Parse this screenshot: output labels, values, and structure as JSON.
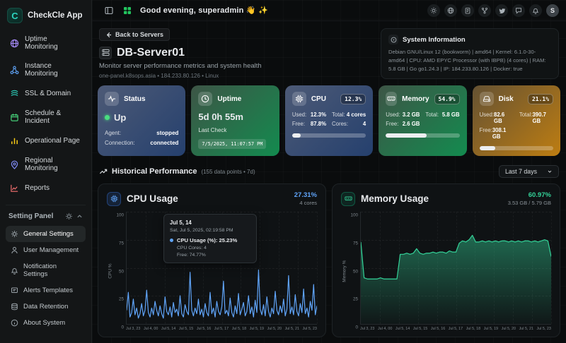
{
  "app": {
    "name": "CheckCle App",
    "logo_letter": "C"
  },
  "sidebar": {
    "nav": [
      {
        "label": "Uptime Monitoring",
        "icon": "globe-icon",
        "color": "#a78bfa"
      },
      {
        "label": "Instance Monitoring",
        "icon": "nodes-icon",
        "color": "#60a5fa"
      },
      {
        "label": "SSL & Domain",
        "icon": "layers-icon",
        "color": "#2dd4bf"
      },
      {
        "label": "Schedule & Incident",
        "icon": "calendar-icon",
        "color": "#4ade80"
      },
      {
        "label": "Operational Page",
        "icon": "bar-chart-icon",
        "color": "#facc15"
      },
      {
        "label": "Regional Monitoring",
        "icon": "map-pin-icon",
        "color": "#818cf8"
      },
      {
        "label": "Reports",
        "icon": "line-chart-icon",
        "color": "#f87171"
      }
    ],
    "settings_header": "Setting Panel",
    "settings": [
      {
        "label": "General Settings",
        "active": true
      },
      {
        "label": "User Management"
      },
      {
        "label": "Notification Settings"
      },
      {
        "label": "Alerts Templates"
      },
      {
        "label": "Data Retention"
      },
      {
        "label": "About System"
      }
    ]
  },
  "header": {
    "greeting": "Good evening, superadmin 👋 ✨",
    "avatar": "S"
  },
  "page": {
    "back_button": "Back to Servers",
    "title": "DB-Server01",
    "subtitle": "Monitor server performance metrics and system health",
    "meta": "one-panel.k8sops.asia • 184.233.80.126 • Linux",
    "system_info": {
      "title": "System Information",
      "details": "Debian GNU/Linux 12 (bookworm) | amd64 | Kernel: 6.1.0-30-amd64 | CPU: AMD EPYC Processor (with IBPB) (4 cores) | RAM: 5.8 GB | Go go1.24.3 | IP: 184.233.80.126 | Docker: true"
    }
  },
  "cards": {
    "status": {
      "title": "Status",
      "value": "Up",
      "agent_label": "Agent:",
      "agent_value": "stopped",
      "connection_label": "Connection:",
      "connection_value": "connected"
    },
    "uptime": {
      "title": "Uptime",
      "value": "5d 0h 55m",
      "last_check_label": "Last Check",
      "last_check": "7/5/2025, 11:07:57 PM"
    },
    "cpu": {
      "title": "CPU",
      "badge": "12.3%",
      "used_label": "Used:",
      "used": "12.3%",
      "total_label": "Total:",
      "total": "4 cores",
      "free_label": "Free:",
      "free": "87.8%",
      "cores_label": "Cores:",
      "cores": "4",
      "progress_pct": 12
    },
    "memory": {
      "title": "Memory",
      "badge": "54.9%",
      "used_label": "Used:",
      "used": "3.2 GB",
      "total_label": "Total:",
      "total": "5.8 GB",
      "free_label": "Free:",
      "free": "2.6 GB",
      "progress_pct": 55
    },
    "disk": {
      "title": "Disk",
      "badge": "21.1%",
      "used_label": "Used:",
      "used": "82.6 GB",
      "total_label": "Total:",
      "total": "390.7 GB",
      "free_label": "Free:",
      "free": "308.1 GB",
      "progress_pct": 21
    }
  },
  "performance": {
    "title": "Historical Performance",
    "meta": "(155 data points • 7d)",
    "range_select": "Last 7 days"
  },
  "tooltip": {
    "title": "Jul 5, 14",
    "subtitle": "Sat, Jul 5, 2025, 02:19:58 PM",
    "series_label": "CPU Usage (%): 25.23%",
    "line2": "CPU Cores: 4",
    "line3": "Free: 74.77%"
  },
  "chart_data": [
    {
      "type": "line",
      "title": "CPU Usage",
      "stat_value": "27.31%",
      "stat_sub": "4 cores",
      "ylabel": "CPU %",
      "ylim": [
        0,
        100
      ],
      "yticks": [
        0,
        25,
        50,
        75,
        100
      ],
      "grid": true,
      "legend": "none",
      "color": "#60a5fa",
      "area": false,
      "xlabels": [
        "Jul 3, 23",
        "Jul 4, 00",
        "Jul 5, 14",
        "Jul 5, 15",
        "Jul 5, 16",
        "Jul 5, 17",
        "Jul 5, 18",
        "Jul 5, 19",
        "Jul 5, 20",
        "Jul 5, 21",
        "Jul 5, 23"
      ],
      "values": [
        12,
        28,
        6,
        10,
        22,
        8,
        14,
        5,
        9,
        18,
        7,
        12,
        30,
        10,
        6,
        14,
        8,
        20,
        12,
        7,
        16,
        9,
        5,
        24,
        11,
        8,
        15,
        6,
        19,
        10,
        13,
        7,
        25,
        9,
        6,
        17,
        11,
        8,
        46,
        12,
        7,
        14,
        9,
        22,
        8,
        13,
        6,
        18,
        10,
        7,
        28,
        9,
        14,
        6,
        20,
        11,
        8,
        15,
        38,
        9,
        12,
        7,
        23,
        10,
        6,
        16,
        9,
        27,
        8,
        13,
        19,
        7,
        11,
        25,
        9,
        15,
        6,
        21,
        10,
        48,
        13,
        8,
        17,
        7,
        24,
        11,
        6,
        14,
        9,
        29,
        12,
        8,
        16,
        10,
        22,
        7,
        13,
        43,
        9,
        15,
        8,
        26,
        11,
        7,
        18,
        10,
        31,
        9,
        14,
        6,
        20,
        12,
        35,
        8,
        16
      ]
    },
    {
      "type": "area",
      "title": "Memory Usage",
      "stat_value": "60.97%",
      "stat_sub": "3.53 GB / 5.79 GB",
      "ylabel": "Memory %",
      "ylim": [
        0,
        100
      ],
      "yticks": [
        0,
        25,
        50,
        75,
        100
      ],
      "grid": true,
      "legend": "none",
      "color": "#34d399",
      "area": true,
      "xlabels": [
        "Jul 3, 23",
        "Jul 4, 00",
        "Jul 5, 14",
        "Jul 5, 15",
        "Jul 5, 16",
        "Jul 5, 17",
        "Jul 5, 18",
        "Jul 5, 19",
        "Jul 5, 20",
        "Jul 5, 21",
        "Jul 5, 23"
      ],
      "values": [
        73,
        41,
        40,
        40,
        40,
        40,
        41,
        40,
        40,
        40,
        40,
        40,
        62,
        62,
        63,
        62,
        63,
        67,
        63,
        62,
        63,
        63,
        64,
        63,
        64,
        64,
        63,
        65,
        64,
        64,
        72,
        74,
        73,
        75,
        79,
        73,
        73,
        74,
        73,
        74,
        73,
        74,
        73,
        74,
        74,
        73,
        74,
        73,
        74,
        73,
        74,
        74,
        73,
        74,
        73,
        74,
        75,
        74,
        60
      ]
    }
  ]
}
